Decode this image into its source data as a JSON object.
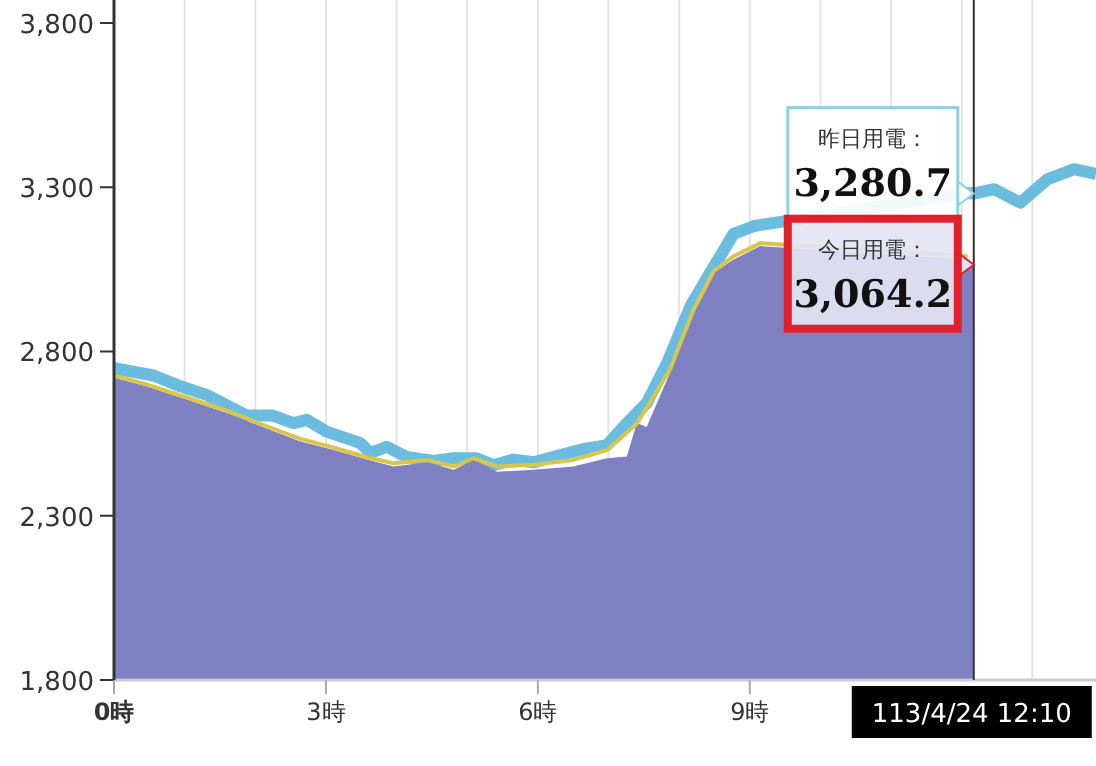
{
  "chart_data": {
    "type": "area",
    "xlim": [
      0,
      13.9
    ],
    "ylim": [
      1800,
      3870
    ],
    "xticks": [
      {
        "value": 0,
        "label": "0時"
      },
      {
        "value": 1,
        "label": null
      },
      {
        "value": 2,
        "label": null
      },
      {
        "value": 3,
        "label": "3時"
      },
      {
        "value": 4,
        "label": null
      },
      {
        "value": 5,
        "label": null
      },
      {
        "value": 6,
        "label": "6時"
      },
      {
        "value": 7,
        "label": null
      },
      {
        "value": 8,
        "label": null
      },
      {
        "value": 9,
        "label": "9時"
      },
      {
        "value": 10,
        "label": null
      },
      {
        "value": 11,
        "label": null
      },
      {
        "value": 12,
        "label": null
      },
      {
        "value": 13,
        "label": null
      }
    ],
    "yticks": [
      {
        "value": 1800,
        "label": "1,800"
      },
      {
        "value": 2300,
        "label": "2,300"
      },
      {
        "value": 2800,
        "label": "2,800"
      },
      {
        "value": 3300,
        "label": "3,300"
      },
      {
        "value": 3800,
        "label": "3,800"
      }
    ],
    "grid": "x",
    "series": [
      {
        "type": "line",
        "color": "#6bbde0",
        "x": [
          0,
          0.56,
          0.94,
          1.31,
          1.88,
          2.25,
          2.54,
          2.73,
          3.01,
          3.49,
          3.63,
          3.86,
          4.14,
          4.52,
          4.8,
          5.13,
          5.37,
          5.65,
          5.94,
          6.6,
          6.98,
          7.26,
          7.54,
          7.83,
          8.16,
          8.44,
          8.77,
          9.06,
          12.08,
          12.17,
          12.46,
          12.83,
          13.21,
          13.59,
          13.9
        ],
        "values": [
          2749,
          2727,
          2694,
          2668,
          2605,
          2605,
          2582,
          2592,
          2556,
          2521,
          2491,
          2510,
          2479,
          2467,
          2475,
          2475,
          2454,
          2471,
          2463,
          2501,
          2515,
          2582,
          2643,
          2765,
          2938,
          3040,
          3158,
          3182,
          3283,
          3280.7,
          3294,
          3253,
          3324,
          3355,
          3341
        ]
      },
      {
        "color": "#7f80c2",
        "x": [
          0,
          0.46,
          1.03,
          1.6,
          2.07,
          2.63,
          3.1,
          3.58,
          3.96,
          4.43,
          4.81,
          5.09,
          5.42,
          5.94,
          6.5,
          6.98,
          7.26,
          7.4,
          7.54,
          7.87,
          8.2,
          8.49,
          8.77,
          9.15,
          12.08,
          12.17
        ],
        "values": [
          2721,
          2694,
          2654,
          2613,
          2573,
          2527,
          2501,
          2471,
          2450,
          2463,
          2440,
          2471,
          2434,
          2440,
          2450,
          2475,
          2480,
          2582,
          2570,
          2735,
          2918,
          3040,
          3080,
          3121,
          3080,
          3064.2
        ]
      },
      {
        "type": "line",
        "color": "#d8c64a",
        "x": [
          0,
          0.46,
          1.03,
          1.6,
          2.07,
          2.63,
          3.1,
          3.58,
          3.96,
          4.43,
          4.81,
          5.09,
          5.42,
          5.94,
          6.5,
          6.98,
          7.4,
          7.87,
          8.2,
          8.49,
          8.77,
          9.15,
          12.08
        ],
        "values": [
          2727,
          2700,
          2660,
          2620,
          2580,
          2535,
          2508,
          2478,
          2460,
          2470,
          2450,
          2475,
          2450,
          2455,
          2470,
          2500,
          2580,
          2745,
          2925,
          3045,
          3090,
          3130,
          3090
        ]
      }
    ],
    "ref_lines": [
      {
        "axis": "x",
        "value": 12.17,
        "label": "113/4/24 12:10",
        "color": "#333333"
      }
    ],
    "annotations": [
      "昨日用電：",
      "3,280.7",
      "今日用電：",
      "3,064.2"
    ]
  }
}
